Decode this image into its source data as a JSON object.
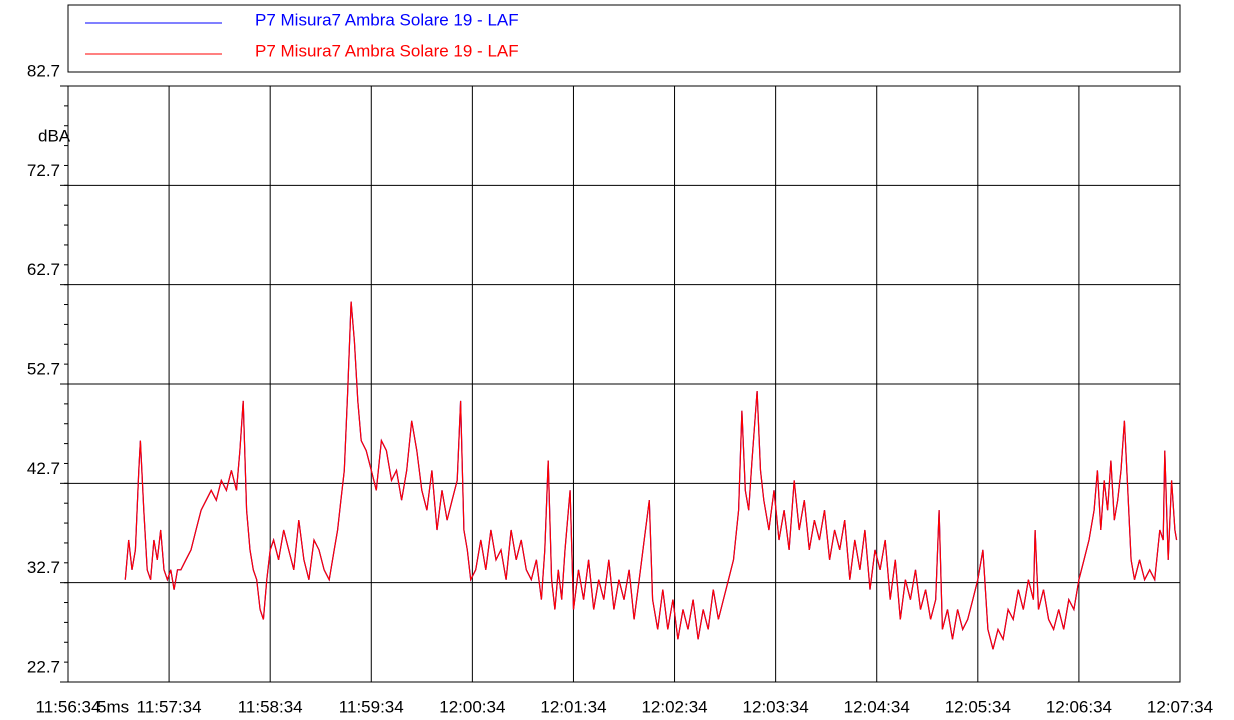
{
  "chart_data": {
    "type": "line",
    "ylabel": "dBA",
    "annotation": "5ms",
    "xlim": [
      0,
      660
    ],
    "xticks": [
      {
        "value": 0,
        "label": "11:56:34"
      },
      {
        "value": 60,
        "label": "11:57:34"
      },
      {
        "value": 120,
        "label": "11:58:34"
      },
      {
        "value": 180,
        "label": "11:59:34"
      },
      {
        "value": 240,
        "label": "12:00:34"
      },
      {
        "value": 300,
        "label": "12:01:34"
      },
      {
        "value": 360,
        "label": "12:02:34"
      },
      {
        "value": 420,
        "label": "12:03:34"
      },
      {
        "value": 480,
        "label": "12:04:34"
      },
      {
        "value": 540,
        "label": "12:05:34"
      },
      {
        "value": 600,
        "label": "12:06:34"
      },
      {
        "value": 660,
        "label": "12:07:34"
      }
    ],
    "ylim": [
      22.7,
      82.7
    ],
    "yticks": [
      22.7,
      32.7,
      42.7,
      52.7,
      62.7,
      72.7,
      82.7
    ],
    "grid": true,
    "legend": "top",
    "x": [
      34,
      36,
      38,
      40,
      42,
      43,
      45,
      47,
      49,
      51,
      53,
      55,
      57,
      59,
      61,
      63,
      65,
      67,
      70,
      73,
      76,
      79,
      82,
      85,
      88,
      91,
      94,
      97,
      100,
      102,
      104,
      106,
      108,
      110,
      112,
      114,
      116,
      118,
      120,
      122,
      125,
      128,
      131,
      134,
      137,
      140,
      143,
      146,
      149,
      152,
      155,
      158,
      160,
      162,
      164,
      166,
      168,
      170,
      172,
      174,
      177,
      180,
      183,
      186,
      189,
      192,
      195,
      198,
      201,
      204,
      207,
      210,
      213,
      216,
      219,
      222,
      225,
      228,
      231,
      233,
      235,
      237,
      239,
      242,
      245,
      248,
      251,
      254,
      257,
      260,
      263,
      266,
      269,
      272,
      275,
      278,
      281,
      283,
      285,
      287,
      289,
      291,
      293,
      295,
      298,
      300,
      303,
      306,
      309,
      312,
      315,
      318,
      321,
      324,
      327,
      330,
      333,
      336,
      339,
      342,
      345,
      347,
      350,
      353,
      356,
      359,
      362,
      365,
      368,
      371,
      374,
      377,
      380,
      383,
      386,
      389,
      392,
      395,
      398,
      400,
      402,
      404,
      406,
      409,
      411,
      413,
      416,
      419,
      422,
      425,
      428,
      431,
      434,
      437,
      440,
      443,
      446,
      449,
      452,
      455,
      458,
      461,
      464,
      467,
      470,
      473,
      476,
      479,
      482,
      485,
      488,
      491,
      494,
      497,
      500,
      503,
      506,
      509,
      512,
      515,
      517,
      519,
      522,
      525,
      528,
      531,
      534,
      537,
      540,
      543,
      546,
      549,
      552,
      555,
      558,
      561,
      564,
      567,
      570,
      573,
      574,
      576,
      579,
      582,
      585,
      588,
      591,
      594,
      597,
      600,
      603,
      606,
      609,
      611,
      613,
      615,
      617,
      619,
      621,
      623,
      625,
      627,
      629,
      631,
      633,
      636,
      639,
      642,
      645,
      648,
      650,
      651,
      653,
      655,
      657,
      658
    ],
    "series": [
      {
        "name": "P7 Misura7 Ambra Solare 19 - LAF",
        "color": "#0000ff",
        "values": [
          33,
          37,
          34,
          36,
          44,
          47,
          40,
          34,
          33,
          37,
          35,
          38,
          34,
          33,
          34,
          32,
          34,
          34,
          35,
          36,
          38,
          40,
          41,
          42,
          41,
          43,
          42,
          44,
          42,
          46,
          51,
          40,
          36,
          34,
          33,
          30,
          29,
          33,
          36,
          37,
          35,
          38,
          36,
          34,
          39,
          35,
          33,
          37,
          36,
          34,
          33,
          36,
          38,
          41,
          44,
          52,
          61,
          57,
          51,
          47,
          46,
          44,
          42,
          47,
          46,
          43,
          44,
          41,
          44,
          49,
          46,
          42,
          40,
          44,
          38,
          42,
          39,
          41,
          43,
          51,
          38,
          36,
          33,
          34,
          37,
          34,
          38,
          35,
          36,
          33,
          38,
          35,
          37,
          34,
          33,
          35,
          31,
          36,
          45,
          33,
          30,
          34,
          31,
          36,
          42,
          30,
          34,
          31,
          35,
          30,
          33,
          31,
          35,
          30,
          33,
          31,
          34,
          29,
          33,
          37,
          41,
          31,
          28,
          32,
          28,
          31,
          27,
          30,
          28,
          31,
          27,
          30,
          28,
          32,
          29,
          31,
          33,
          35,
          40,
          50,
          42,
          40,
          45,
          52,
          44,
          41,
          38,
          42,
          37,
          40,
          36,
          43,
          38,
          41,
          36,
          39,
          37,
          40,
          35,
          38,
          36,
          39,
          33,
          37,
          34,
          38,
          32,
          36,
          34,
          37,
          31,
          35,
          29,
          33,
          31,
          34,
          30,
          32,
          29,
          31,
          40,
          28,
          30,
          27,
          30,
          28,
          29,
          31,
          33,
          36,
          28,
          26,
          28,
          27,
          30,
          29,
          32,
          30,
          33,
          31,
          38,
          30,
          32,
          29,
          28,
          30,
          28,
          31,
          30,
          33,
          35,
          37,
          40,
          44,
          38,
          43,
          40,
          45,
          39,
          41,
          44,
          49,
          42,
          35,
          33,
          35,
          33,
          34,
          33,
          38,
          37,
          46,
          35,
          43,
          38,
          37
        ]
      },
      {
        "name": "P7 Misura7 Ambra Solare 19 - LAF",
        "color": "#ff0000",
        "values": [
          33,
          37,
          34,
          36,
          44,
          47,
          40,
          34,
          33,
          37,
          35,
          38,
          34,
          33,
          34,
          32,
          34,
          34,
          35,
          36,
          38,
          40,
          41,
          42,
          41,
          43,
          42,
          44,
          42,
          46,
          51,
          40,
          36,
          34,
          33,
          30,
          29,
          33,
          36,
          37,
          35,
          38,
          36,
          34,
          39,
          35,
          33,
          37,
          36,
          34,
          33,
          36,
          38,
          41,
          44,
          52,
          61,
          57,
          51,
          47,
          46,
          44,
          42,
          47,
          46,
          43,
          44,
          41,
          44,
          49,
          46,
          42,
          40,
          44,
          38,
          42,
          39,
          41,
          43,
          51,
          38,
          36,
          33,
          34,
          37,
          34,
          38,
          35,
          36,
          33,
          38,
          35,
          37,
          34,
          33,
          35,
          31,
          36,
          45,
          33,
          30,
          34,
          31,
          36,
          42,
          30,
          34,
          31,
          35,
          30,
          33,
          31,
          35,
          30,
          33,
          31,
          34,
          29,
          33,
          37,
          41,
          31,
          28,
          32,
          28,
          31,
          27,
          30,
          28,
          31,
          27,
          30,
          28,
          32,
          29,
          31,
          33,
          35,
          40,
          50,
          42,
          40,
          45,
          52,
          44,
          41,
          38,
          42,
          37,
          40,
          36,
          43,
          38,
          41,
          36,
          39,
          37,
          40,
          35,
          38,
          36,
          39,
          33,
          37,
          34,
          38,
          32,
          36,
          34,
          37,
          31,
          35,
          29,
          33,
          31,
          34,
          30,
          32,
          29,
          31,
          40,
          28,
          30,
          27,
          30,
          28,
          29,
          31,
          33,
          36,
          28,
          26,
          28,
          27,
          30,
          29,
          32,
          30,
          33,
          31,
          38,
          30,
          32,
          29,
          28,
          30,
          28,
          31,
          30,
          33,
          35,
          37,
          40,
          44,
          38,
          43,
          40,
          45,
          39,
          41,
          44,
          49,
          42,
          35,
          33,
          35,
          33,
          34,
          33,
          38,
          37,
          46,
          35,
          43,
          38,
          37
        ]
      }
    ]
  }
}
